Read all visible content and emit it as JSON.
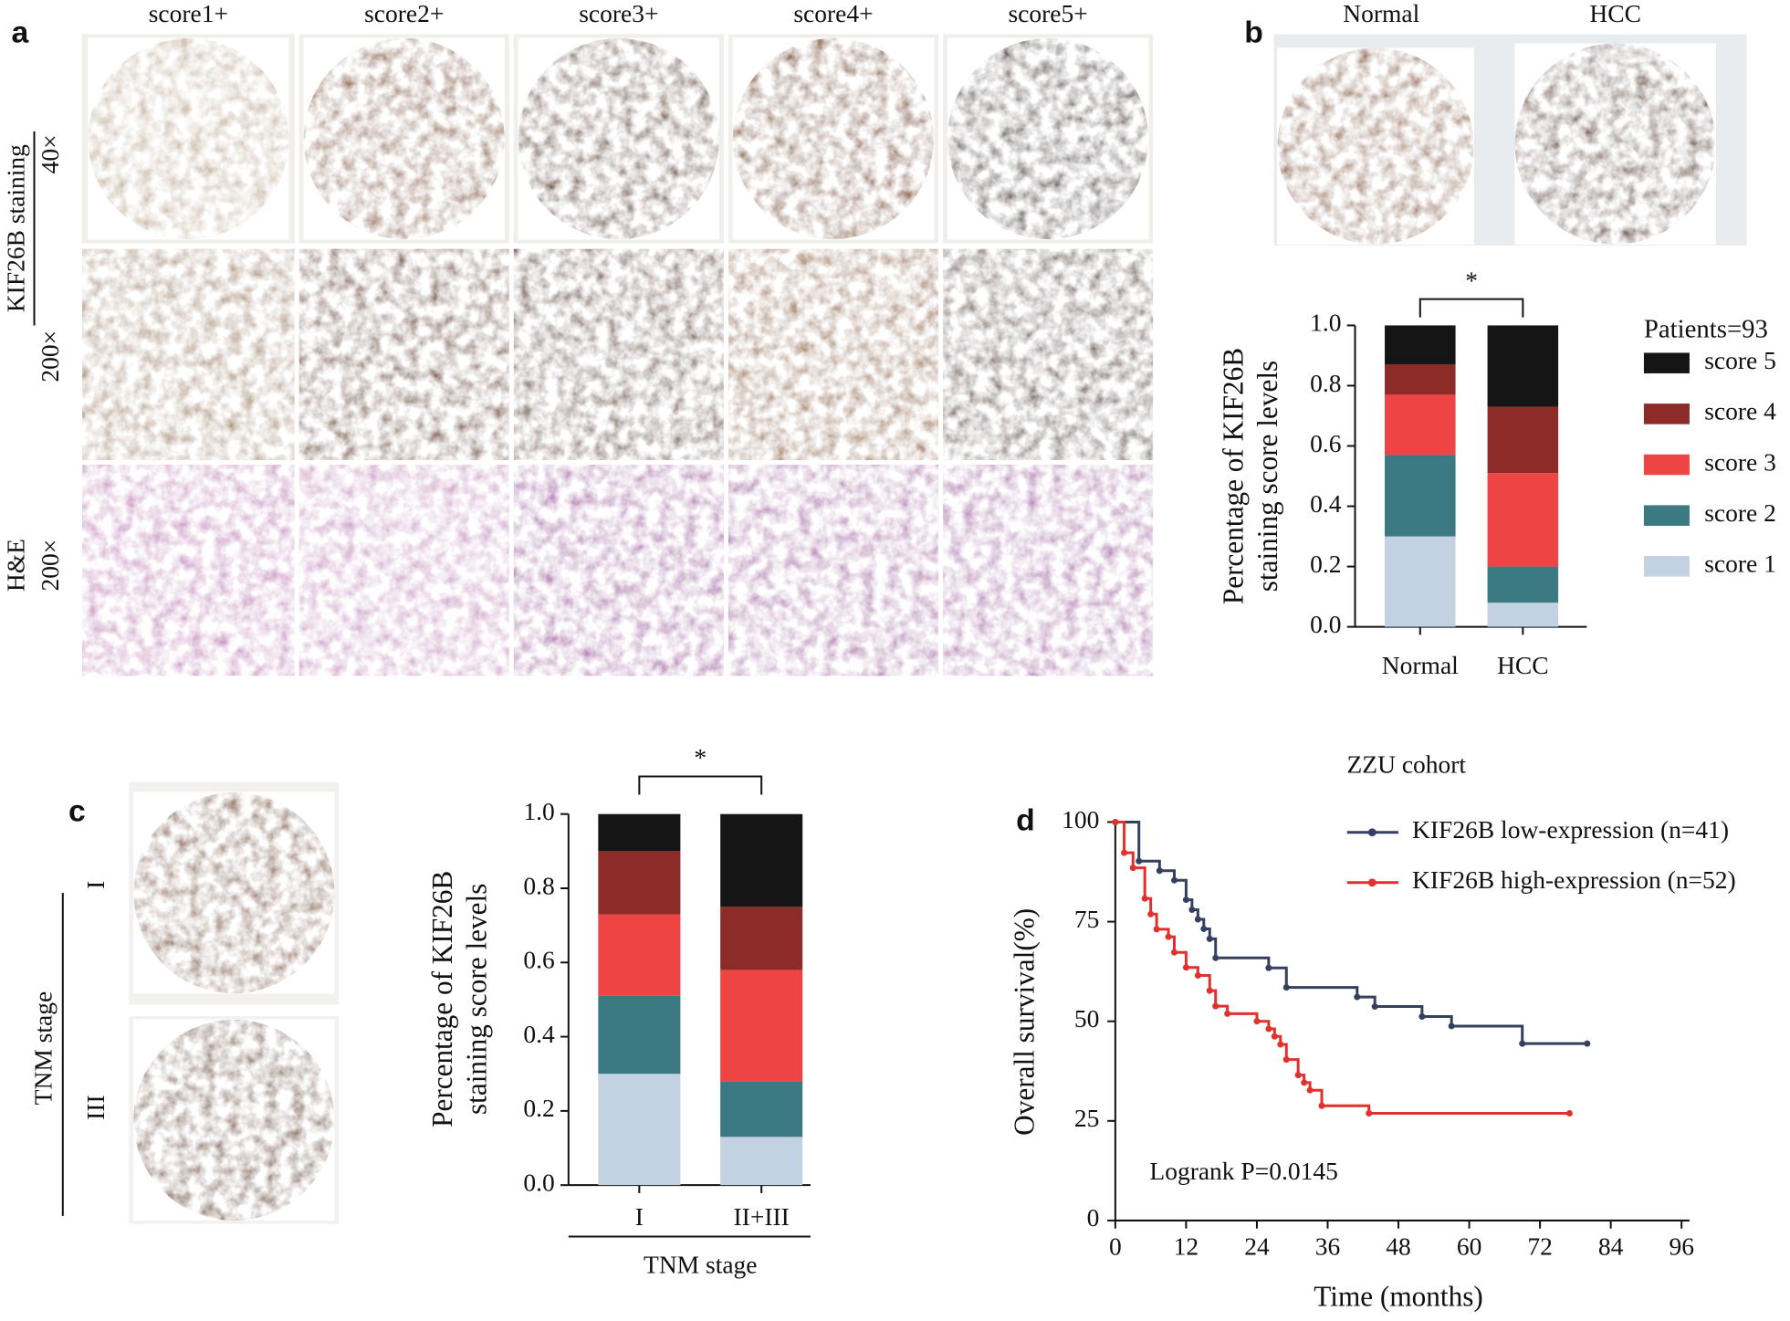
{
  "panel_labels": [
    "a",
    "b",
    "c",
    "d"
  ],
  "panel_a": {
    "columns": [
      "score1+",
      "score2+",
      "score3+",
      "score4+",
      "score5+"
    ],
    "row_group": "KIF26B staining",
    "rows": [
      "40×",
      "200×",
      "200×"
    ],
    "he_label": "H&E"
  },
  "panel_b": {
    "images": [
      "Normal",
      "HCC"
    ]
  },
  "panel_c": {
    "images": [
      "I",
      "III"
    ],
    "group": "TNM stage"
  },
  "chart_data": [
    {
      "type": "stacked_bar",
      "ylabel": [
        "Percentage of KIF26B",
        "staining score levels"
      ],
      "categories": [
        "Normal",
        "HCC"
      ],
      "ylim": [
        0,
        1
      ],
      "yticks": [
        {
          "value": 0,
          "label": "0.0"
        },
        0.2,
        0.4,
        0.6,
        0.8,
        {
          "value": 1,
          "label": "1.0"
        }
      ],
      "significance": "*",
      "legend": true,
      "legend_title": "Patients=93",
      "series": [
        {
          "name": "score 1",
          "color": "#c3d2e2",
          "values": [
            0.3,
            0.08
          ]
        },
        {
          "name": "score 2",
          "color": "#3b7a82",
          "values": [
            0.27,
            0.12
          ]
        },
        {
          "name": "score 3",
          "color": "#ee4444",
          "values": [
            0.2,
            0.31
          ]
        },
        {
          "name": "score 4",
          "color": "#8c2b28",
          "values": [
            0.1,
            0.22
          ]
        },
        {
          "name": "score 5",
          "color": "#151515",
          "values": [
            0.13,
            0.27
          ]
        }
      ]
    },
    {
      "type": "stacked_bar",
      "ylabel": [
        "Percentage of KIF26B",
        "staining score levels"
      ],
      "categories": [
        "I",
        "II+III"
      ],
      "xlabel": "TNM stage",
      "ylim": [
        0,
        1
      ],
      "yticks": [
        {
          "value": 0,
          "label": "0.0"
        },
        0.2,
        0.4,
        0.6,
        0.8,
        {
          "value": 1,
          "label": "1.0"
        }
      ],
      "significance": "*",
      "legend": false,
      "series": [
        {
          "color": "#c3d2e2",
          "values": [
            0.3,
            0.13
          ]
        },
        {
          "color": "#3b7a82",
          "values": [
            0.21,
            0.15
          ]
        },
        {
          "color": "#ee4444",
          "values": [
            0.22,
            0.3
          ]
        },
        {
          "color": "#8c2b28",
          "values": [
            0.17,
            0.17
          ]
        },
        {
          "color": "#151515",
          "values": [
            0.1,
            0.25
          ]
        }
      ]
    },
    {
      "type": "line",
      "step": "post",
      "title": "ZZU cohort",
      "xlabel": "Time (months)",
      "ylabel": "Overall survival(%)",
      "annotation": "Logrank P=0.0145",
      "xlim": [
        0,
        96
      ],
      "xticks": [
        0,
        12,
        24,
        36,
        48,
        60,
        72,
        84,
        96
      ],
      "ylim": [
        0,
        100
      ],
      "yticks": [
        0,
        25,
        50,
        75,
        100
      ],
      "legend": true,
      "series": [
        {
          "name": "KIF26B low-expression (n=41)",
          "color": "#34405e",
          "x": [
            0,
            4,
            7.5,
            10,
            12,
            13,
            14,
            15,
            16,
            17,
            26,
            29,
            41,
            44,
            52,
            57,
            69,
            80
          ],
          "values": [
            100,
            90.2,
            87.8,
            85.4,
            80.5,
            78,
            75.6,
            73.2,
            70.7,
            65.9,
            63.4,
            58.5,
            56.1,
            53.7,
            51.2,
            48.8,
            44.4,
            44.4
          ]
        },
        {
          "name": "KIF26B high-expression (n=52)",
          "color": "#e0312f",
          "x": [
            0,
            1.5,
            3,
            5,
            6,
            7,
            9,
            10,
            12,
            14,
            16,
            17,
            19,
            24,
            26,
            27,
            28,
            29,
            31,
            32,
            33,
            35,
            43,
            77
          ],
          "values": [
            100,
            92.3,
            88.5,
            80.8,
            76.9,
            73.1,
            71.2,
            67.3,
            63.5,
            61.5,
            57.7,
            53.8,
            51.9,
            50,
            48.1,
            46.2,
            44.2,
            40.4,
            36.5,
            34.6,
            32.7,
            28.8,
            26.9,
            26.9
          ]
        }
      ]
    }
  ]
}
